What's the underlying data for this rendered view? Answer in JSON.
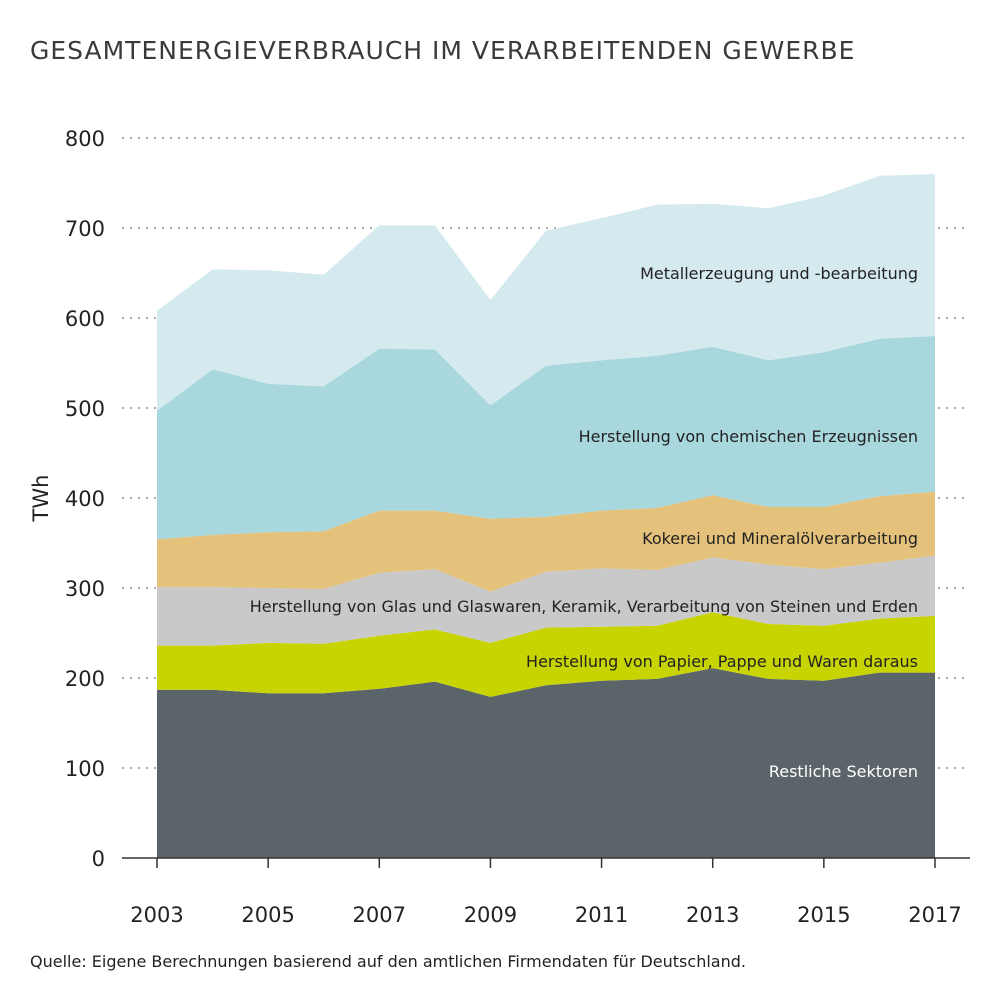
{
  "title": "GESAMTENERGIEVERBRAUCH IM VERARBEITENDEN GEWERBE",
  "source": "Quelle: Eigene Berechnungen basierend auf den amtlichen Firmendaten für Deutschland.",
  "chart_data": {
    "type": "area",
    "stacked": true,
    "title": "GESAMTENERGIEVERBRAUCH IM VERARBEITENDEN GEWERBE",
    "ylabel": "TWh",
    "xlabel": "",
    "ylim": [
      0,
      800
    ],
    "yticks": [
      0,
      100,
      200,
      300,
      400,
      500,
      600,
      700,
      800
    ],
    "xticks": [
      2003,
      2005,
      2007,
      2009,
      2011,
      2013,
      2015,
      2017
    ],
    "grid": "horizontal dotted",
    "x": [
      2003,
      2004,
      2005,
      2006,
      2007,
      2008,
      2009,
      2010,
      2011,
      2012,
      2013,
      2014,
      2015,
      2016,
      2017
    ],
    "series": [
      {
        "name": "Restliche Sektoren",
        "color": "#5a6469",
        "label_color": "#ffffff",
        "values": [
          187,
          187,
          183,
          183,
          188,
          196,
          179,
          192,
          197,
          199,
          211,
          199,
          197,
          206,
          206
        ]
      },
      {
        "name": "Herstellung von Papier, Pappe und Waren daraus",
        "color": "#c8d400",
        "label_color": "#222222",
        "values": [
          49,
          49,
          56,
          55,
          59,
          58,
          60,
          64,
          60,
          59,
          62,
          61,
          61,
          60,
          63
        ]
      },
      {
        "name": "Herstellung von Glas und Glaswaren, Keramik, Verarbeitung von Steinen und Erden",
        "color": "#c9c9c9",
        "label_color": "#222222",
        "values": [
          65,
          65,
          61,
          61,
          70,
          67,
          57,
          62,
          65,
          62,
          61,
          66,
          63,
          62,
          67
        ]
      },
      {
        "name": "Kokerei und Mineralölverarbeitung",
        "color": "#e5c27b",
        "label_color": "#222222",
        "values": [
          53,
          58,
          62,
          64,
          69,
          65,
          81,
          61,
          64,
          69,
          69,
          64,
          69,
          74,
          71
        ]
      },
      {
        "name": "Herstellung von chemischen Erzeugnissen",
        "color": "#a8d7dd",
        "label_color": "#222222",
        "values": [
          143,
          184,
          165,
          161,
          180,
          179,
          126,
          168,
          167,
          169,
          165,
          163,
          172,
          175,
          173
        ]
      },
      {
        "name": "Metallerzeugung und -bearbeitung",
        "color": "#d5eaee",
        "label_color": "#222222",
        "values": [
          111,
          111,
          126,
          124,
          137,
          138,
          117,
          150,
          158,
          168,
          159,
          169,
          174,
          181,
          180
        ]
      }
    ]
  }
}
